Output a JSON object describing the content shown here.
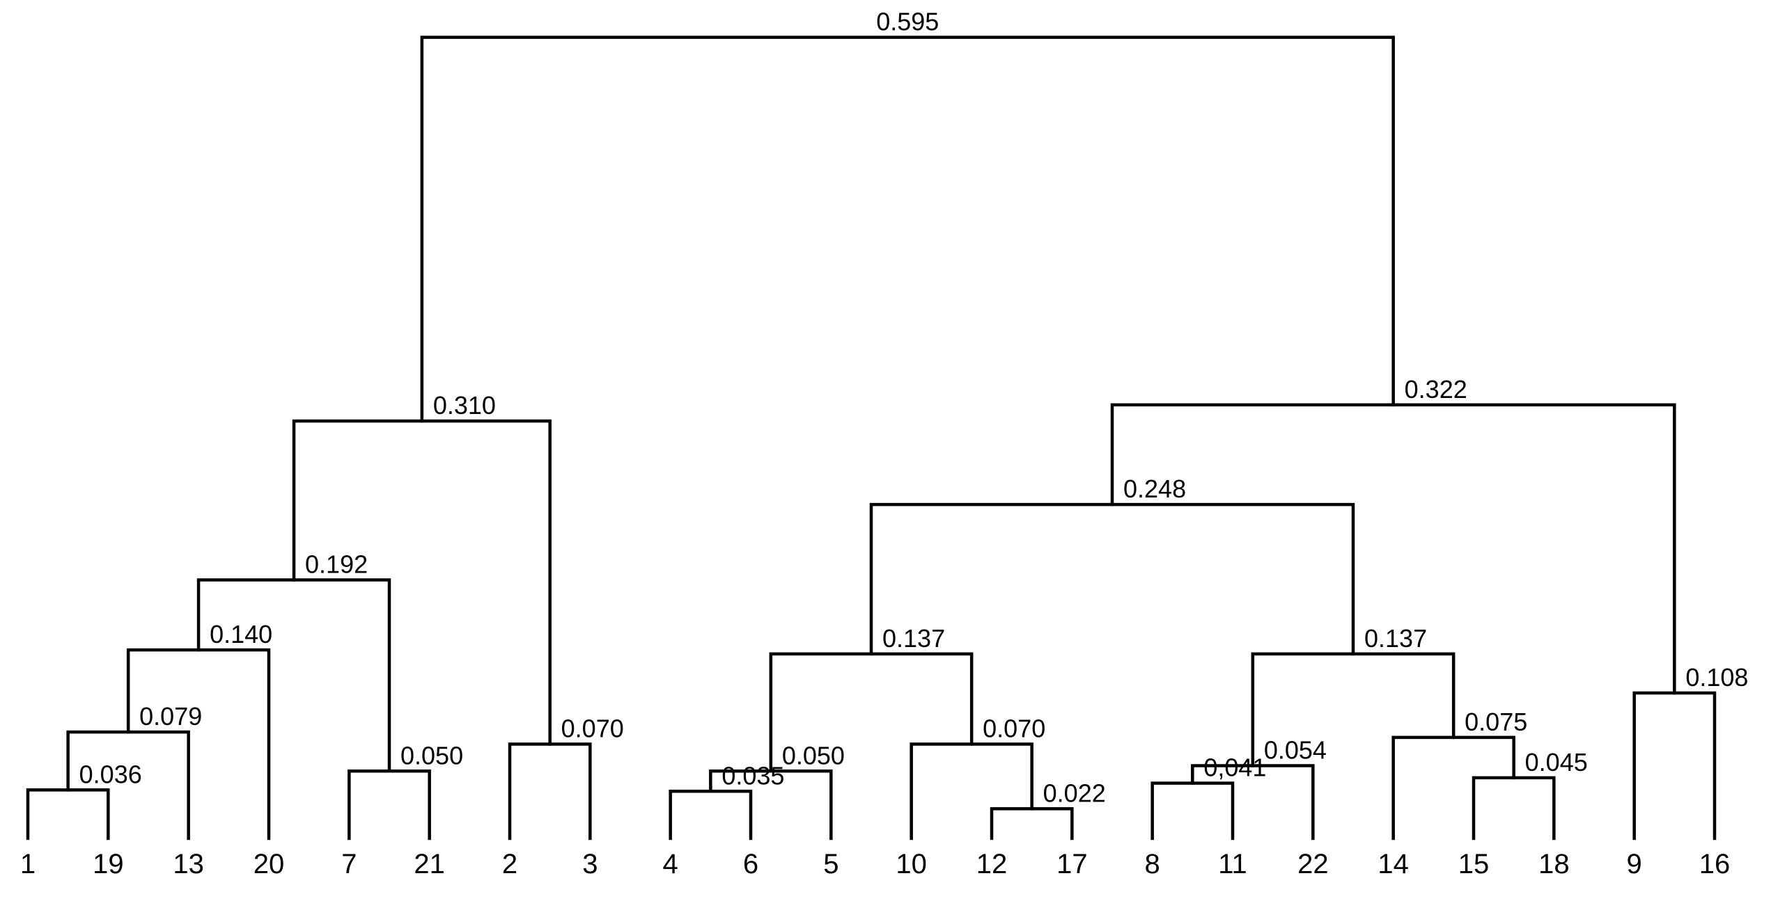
{
  "leaves": [
    "1",
    "19",
    "13",
    "20",
    "7",
    "21",
    "2",
    "3",
    "4",
    "6",
    "5",
    "10",
    "12",
    "17",
    "8",
    "11",
    "22",
    "14",
    "15",
    "18",
    "9",
    "16"
  ],
  "merges": [
    {
      "id": "m1",
      "children": [
        "1",
        "19"
      ],
      "height": 0.036,
      "label": "0.036"
    },
    {
      "id": "m2",
      "children": [
        "m1",
        "13"
      ],
      "height": 0.079,
      "label": "0.079"
    },
    {
      "id": "m3",
      "children": [
        "m2",
        "20"
      ],
      "height": 0.14,
      "label": "0.140"
    },
    {
      "id": "m4",
      "children": [
        "7",
        "21"
      ],
      "height": 0.05,
      "label": "0.050"
    },
    {
      "id": "m5",
      "children": [
        "m3",
        "m4"
      ],
      "height": 0.192,
      "label": "0.192"
    },
    {
      "id": "m6",
      "children": [
        "2",
        "3"
      ],
      "height": 0.07,
      "label": "0.070"
    },
    {
      "id": "m7",
      "children": [
        "m5",
        "m6"
      ],
      "height": 0.31,
      "label": "0.310"
    },
    {
      "id": "m8",
      "children": [
        "4",
        "6"
      ],
      "height": 0.035,
      "label": "0.035"
    },
    {
      "id": "m9",
      "children": [
        "m8",
        "5"
      ],
      "height": 0.05,
      "label": "0.050"
    },
    {
      "id": "m10",
      "children": [
        "12",
        "17"
      ],
      "height": 0.022,
      "label": "0.022"
    },
    {
      "id": "m11",
      "children": [
        "10",
        "m10"
      ],
      "height": 0.07,
      "label": "0.070"
    },
    {
      "id": "m12",
      "children": [
        "m9",
        "m11"
      ],
      "height": 0.137,
      "label": "0.137"
    },
    {
      "id": "m13",
      "children": [
        "8",
        "11"
      ],
      "height": 0.041,
      "label": "0,041"
    },
    {
      "id": "m14",
      "children": [
        "m13",
        "22"
      ],
      "height": 0.054,
      "label": "0.054"
    },
    {
      "id": "m15",
      "children": [
        "15",
        "18"
      ],
      "height": 0.045,
      "label": "0.045"
    },
    {
      "id": "m16",
      "children": [
        "14",
        "m15"
      ],
      "height": 0.075,
      "label": "0.075"
    },
    {
      "id": "m17",
      "children": [
        "m14",
        "m16"
      ],
      "height": 0.137,
      "label": "0.137"
    },
    {
      "id": "m18",
      "children": [
        "m12",
        "m17"
      ],
      "height": 0.248,
      "label": "0.248"
    },
    {
      "id": "m19",
      "children": [
        "9",
        "16"
      ],
      "height": 0.108,
      "label": "0.108"
    },
    {
      "id": "m20",
      "children": [
        "m18",
        "m19"
      ],
      "height": 0.322,
      "label": "0.322"
    },
    {
      "id": "m21",
      "children": [
        "m7",
        "m20"
      ],
      "height": 0.595,
      "label": "0.595"
    }
  ]
}
